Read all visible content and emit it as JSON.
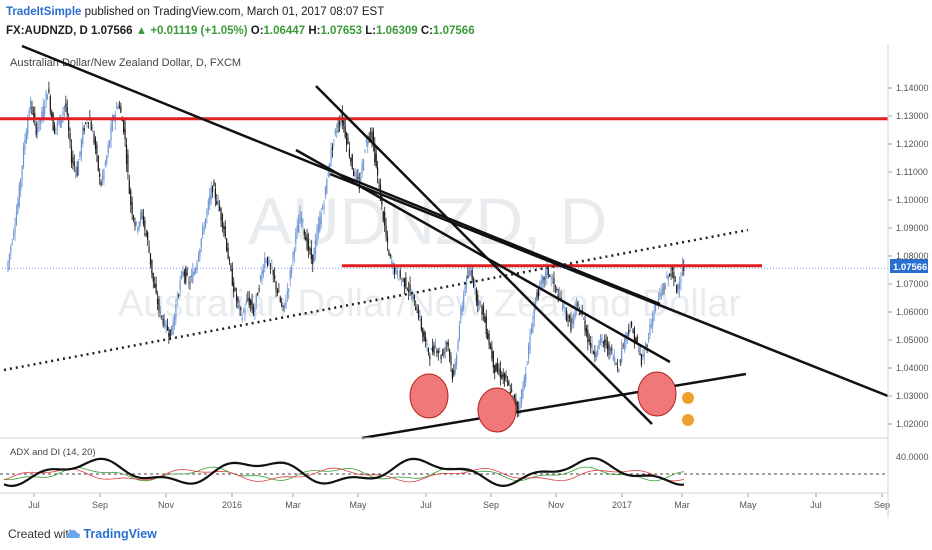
{
  "header": {
    "author": "TradeItSimple",
    "published_text": "published on TradingView.com, March 01, 2017 08:07 EST",
    "symbol": "FX:AUDNZD, D",
    "last_price": "1.07566",
    "change": "▲ +0.01119 (+1.05%)",
    "o_label": "O:",
    "o_value": "1.06447",
    "h_label": "H:",
    "h_value": "1.07653",
    "l_label": "L:",
    "l_value": "1.06309",
    "c_label": "C:",
    "c_value": "1.07566"
  },
  "chart_title": "Australian Dollar/New Zealand Dollar, D, FXCM",
  "watermark": {
    "line1": "AUDNZD, D",
    "line2": "Australian Dollar/New Zealand Dollar"
  },
  "indicator_label": "ADX and DI (14, 20)",
  "indicator_level": "40.0000",
  "price_label": "1.07566",
  "footer": {
    "created": "Created with",
    "brand": "TradingView"
  },
  "colors": {
    "candle_up": "#6e95d6",
    "candle_down": "#1a1a1a",
    "resistance": "#e02020",
    "trend": "#111111",
    "circle_fill": "#f07878",
    "adx": "#111111",
    "di_plus": "#3aa03a",
    "di_minus": "#e04040",
    "price_badge": "#2a6fd0"
  },
  "chart_data": {
    "type": "candlestick",
    "title": "Australian Dollar/New Zealand Dollar, D, FXCM",
    "x_ticks": [
      "Jul",
      "Sep",
      "Nov",
      "2016",
      "Mar",
      "May",
      "Jul",
      "Sep",
      "Nov",
      "2017",
      "Mar",
      "May",
      "Jul",
      "Sep"
    ],
    "y_ticks": [
      "1.14000",
      "1.13000",
      "1.12000",
      "1.11000",
      "1.10000",
      "1.09000",
      "1.08000",
      "1.07000",
      "1.06000",
      "1.05000",
      "1.04000",
      "1.03000",
      "1.02000"
    ],
    "ylim": [
      1.015,
      1.145
    ],
    "price_path": [
      [
        0.0,
        1.075
      ],
      [
        0.5,
        1.087
      ],
      [
        1,
        1.1
      ],
      [
        1.5,
        1.12
      ],
      [
        2,
        1.135
      ],
      [
        2.5,
        1.125
      ],
      [
        3,
        1.13
      ],
      [
        3.5,
        1.14
      ],
      [
        4,
        1.125
      ],
      [
        4.5,
        1.128
      ],
      [
        5,
        1.135
      ],
      [
        5.5,
        1.115
      ],
      [
        6,
        1.11
      ],
      [
        6.5,
        1.125
      ],
      [
        7,
        1.13
      ],
      [
        7.5,
        1.12
      ],
      [
        8,
        1.105
      ],
      [
        8.5,
        1.115
      ],
      [
        9,
        1.128
      ],
      [
        9.5,
        1.135
      ],
      [
        10,
        1.125
      ],
      [
        10.5,
        1.1
      ],
      [
        11,
        1.09
      ],
      [
        11.5,
        1.095
      ],
      [
        12,
        1.085
      ],
      [
        12.5,
        1.07
      ],
      [
        13,
        1.06
      ],
      [
        13.5,
        1.055
      ],
      [
        14,
        1.052
      ],
      [
        14.5,
        1.065
      ],
      [
        15,
        1.075
      ],
      [
        15.5,
        1.07
      ],
      [
        16,
        1.075
      ],
      [
        16.5,
        1.085
      ],
      [
        17,
        1.095
      ],
      [
        17.5,
        1.105
      ],
      [
        18,
        1.098
      ],
      [
        18.5,
        1.09
      ],
      [
        19,
        1.075
      ],
      [
        19.5,
        1.065
      ],
      [
        20,
        1.058
      ],
      [
        20.5,
        1.065
      ],
      [
        21,
        1.06
      ],
      [
        21.5,
        1.07
      ],
      [
        22,
        1.08
      ],
      [
        22.5,
        1.075
      ],
      [
        23,
        1.068
      ],
      [
        23.5,
        1.06
      ],
      [
        24,
        1.07
      ],
      [
        24.5,
        1.085
      ],
      [
        25,
        1.095
      ],
      [
        25.5,
        1.085
      ],
      [
        26,
        1.078
      ],
      [
        26.5,
        1.09
      ],
      [
        27,
        1.1
      ],
      [
        27.5,
        1.115
      ],
      [
        28,
        1.125
      ],
      [
        28.5,
        1.13
      ],
      [
        29,
        1.12
      ],
      [
        29.5,
        1.11
      ],
      [
        30,
        1.105
      ],
      [
        30.5,
        1.12
      ],
      [
        31,
        1.125
      ],
      [
        31.5,
        1.11
      ],
      [
        32,
        1.095
      ],
      [
        32.5,
        1.08
      ],
      [
        33,
        1.075
      ],
      [
        33.5,
        1.072
      ],
      [
        34,
        1.07
      ],
      [
        34.5,
        1.065
      ],
      [
        35,
        1.06
      ],
      [
        35.5,
        1.05
      ],
      [
        36,
        1.045
      ],
      [
        36.5,
        1.048
      ],
      [
        37,
        1.044
      ],
      [
        37.5,
        1.05
      ],
      [
        38,
        1.035
      ],
      [
        38.5,
        1.055
      ],
      [
        39,
        1.07
      ],
      [
        39.5,
        1.075
      ],
      [
        40,
        1.065
      ],
      [
        40.5,
        1.06
      ],
      [
        41,
        1.05
      ],
      [
        41.5,
        1.04
      ],
      [
        42,
        1.038
      ],
      [
        42.5,
        1.035
      ],
      [
        43,
        1.03
      ],
      [
        43.5,
        1.025
      ],
      [
        44,
        1.035
      ],
      [
        44.5,
        1.05
      ],
      [
        45,
        1.065
      ],
      [
        45.5,
        1.07
      ],
      [
        46,
        1.075
      ],
      [
        46.5,
        1.07
      ],
      [
        47,
        1.065
      ],
      [
        47.5,
        1.06
      ],
      [
        48,
        1.055
      ],
      [
        48.5,
        1.062
      ],
      [
        49,
        1.058
      ],
      [
        49.5,
        1.05
      ],
      [
        50,
        1.045
      ],
      [
        50.5,
        1.05
      ],
      [
        51,
        1.048
      ],
      [
        51.5,
        1.045
      ],
      [
        52,
        1.04
      ],
      [
        52.5,
        1.05
      ],
      [
        53,
        1.055
      ],
      [
        53.5,
        1.05
      ],
      [
        54,
        1.042
      ],
      [
        54.5,
        1.05
      ],
      [
        55,
        1.06
      ],
      [
        55.5,
        1.065
      ],
      [
        56,
        1.07
      ],
      [
        56.5,
        1.075
      ],
      [
        57,
        1.068
      ],
      [
        57.5,
        1.076
      ]
    ],
    "horizontal_levels": [
      1.129,
      1.0765
    ],
    "annotations": [
      "resistance 1.129",
      "resistance 1.0765",
      "descending channel",
      "ascending support",
      "dotted trend"
    ],
    "indicator": {
      "name": "ADX and DI (14, 20)",
      "level": 40.0
    }
  }
}
